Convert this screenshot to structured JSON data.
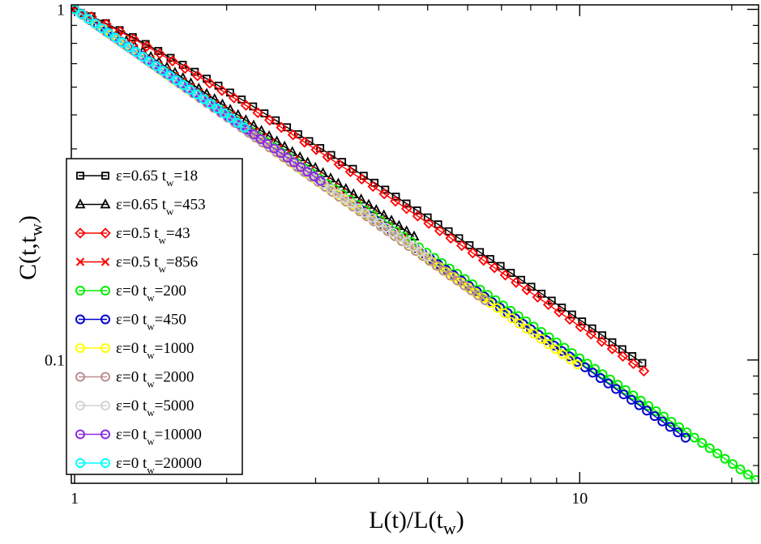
{
  "chart_data": {
    "type": "line",
    "xscale": "log",
    "yscale": "log",
    "xlabel": "L(t)/L(t_w)",
    "xlabel_parts": [
      "L(t)/L(t",
      "w",
      ")"
    ],
    "ylabel": "C(t,t_w)",
    "ylabel_parts": [
      "C(t,t",
      "w",
      ")"
    ],
    "xlim": [
      0.985,
      22.6
    ],
    "ylim": [
      0.0445,
      1.03
    ],
    "x_ticks": [
      {
        "value": 1,
        "label": "1"
      },
      {
        "value": 10,
        "label": "10"
      }
    ],
    "y_ticks": [
      {
        "value": 0.1,
        "label": "0.1"
      },
      {
        "value": 1,
        "label": "1"
      }
    ],
    "legend_position": "center-left",
    "series": [
      {
        "name": "ε=0.65 t_w=18",
        "label_main": "ε=0.65 t",
        "label_sub": "w",
        "label_tail": "=18",
        "color": "#000000",
        "marker": "square",
        "x_start": 1.0,
        "x_end": 13.3,
        "y_start": 1.0,
        "y_end": 0.098,
        "exp": 0.895,
        "n": 52
      },
      {
        "name": "ε=0.65 t_w=453",
        "label_main": "ε=0.65 t",
        "label_sub": "w",
        "label_tail": "=453",
        "color": "#000000",
        "marker": "triangle",
        "x_start": 1.0,
        "x_end": 4.7,
        "y_start": 1.0,
        "y_end": 0.225,
        "exp": 0.955,
        "n": 44
      },
      {
        "name": "ε=0.5 t_w=43",
        "label_main": "ε=0.5 t",
        "label_sub": "w",
        "label_tail": "=43",
        "color": "#ff0000",
        "marker": "diamond",
        "x_start": 1.0,
        "x_end": 13.4,
        "y_start": 1.0,
        "y_end": 0.093,
        "exp": 0.905,
        "n": 50
      },
      {
        "name": "ε=0.5 t_w=856",
        "label_main": "ε=0.5  t",
        "label_sub": "w",
        "label_tail": "=856",
        "color": "#ff0000",
        "marker": "x",
        "x_start": 1.0,
        "x_end": 4.5,
        "y_start": 1.0,
        "y_end": 0.225,
        "exp": 0.97,
        "n": 42
      },
      {
        "name": "ε=0 t_w=200",
        "label_main": "ε=0 t",
        "label_sub": "w",
        "label_tail": "=200",
        "color": "#00ee00",
        "marker": "circle",
        "x_start": 1.0,
        "x_end": 22.3,
        "y_start": 1.0,
        "y_end": 0.0455,
        "exp": 1.0,
        "n": 90
      },
      {
        "name": "ε=0 t_w=450",
        "label_main": "ε=0 t",
        "label_sub": "w",
        "label_tail": "=450",
        "color": "#0000cc",
        "marker": "circle",
        "x_start": 1.0,
        "x_end": 16.2,
        "y_start": 1.0,
        "y_end": 0.06,
        "exp": 1.0,
        "n": 80
      },
      {
        "name": "ε=0 t_w=1000",
        "label_main": "ε=0 t",
        "label_sub": "w",
        "label_tail": "=1000",
        "color": "#ffff00",
        "marker": "circle",
        "x_start": 1.0,
        "x_end": 9.9,
        "y_start": 1.0,
        "y_end": 0.097,
        "exp": 1.0,
        "n": 70
      },
      {
        "name": "ε=0 t_w=2000",
        "label_main": "ε=0 t",
        "label_sub": "w",
        "label_tail": "=2000",
        "color": "#bc8f8f",
        "marker": "circle",
        "x_start": 1.0,
        "x_end": 6.5,
        "y_start": 1.0,
        "y_end": 0.148,
        "exp": 1.0,
        "n": 60
      },
      {
        "name": "ε=0 t_w=5000",
        "label_main": "ε=0 t",
        "label_sub": "w",
        "label_tail": "=5000",
        "color": "#d3d3d3",
        "marker": "circle",
        "x_start": 1.0,
        "x_end": 5.0,
        "y_start": 1.0,
        "y_end": 0.197,
        "exp": 1.0,
        "n": 52
      },
      {
        "name": "ε=0 t_w=10000",
        "label_main": "ε=0 t",
        "label_sub": "w",
        "label_tail": "=10000",
        "color": "#8a2be2",
        "marker": "circle",
        "x_start": 1.0,
        "x_end": 3.07,
        "y_start": 1.0,
        "y_end": 0.324,
        "exp": 1.0,
        "n": 38
      },
      {
        "name": "ε=0 t_w=20000",
        "label_main": "ε=0 t",
        "label_sub": "w",
        "label_tail": "=20000",
        "color": "#00ffff",
        "marker": "circle",
        "x_start": 1.0,
        "x_end": 2.17,
        "y_start": 1.0,
        "y_end": 0.46,
        "exp": 1.0,
        "n": 26
      }
    ]
  }
}
